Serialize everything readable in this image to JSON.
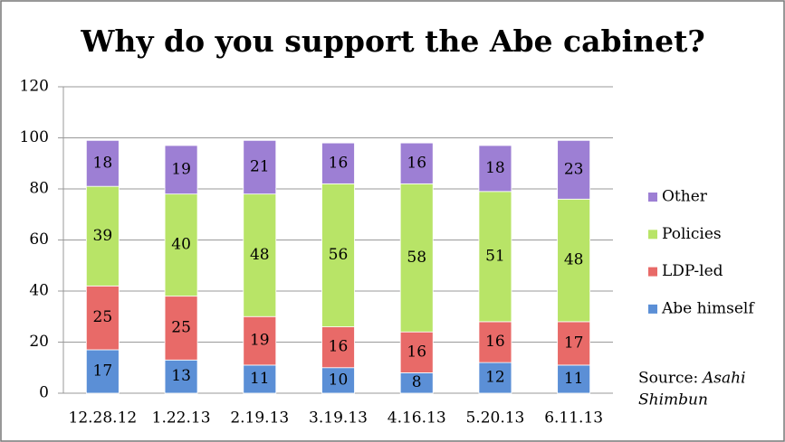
{
  "chart_data": {
    "type": "stacked-bar",
    "title": "Why do you support the Abe cabinet?",
    "categories": [
      "12.28.12",
      "1.22.13",
      "2.19.13",
      "3.19.13",
      "4.16.13",
      "5.20.13",
      "6.11.13"
    ],
    "series": [
      {
        "name": "Abe himself",
        "color": "#5b8fd6",
        "values": [
          17,
          13,
          11,
          10,
          8,
          12,
          11
        ]
      },
      {
        "name": "LDP-led",
        "color": "#e86a68",
        "values": [
          25,
          25,
          19,
          16,
          16,
          16,
          17
        ]
      },
      {
        "name": "Policies",
        "color": "#b8e467",
        "values": [
          39,
          40,
          48,
          56,
          58,
          51,
          48
        ]
      },
      {
        "name": "Other",
        "color": "#9d7fd4",
        "values": [
          18,
          19,
          21,
          16,
          16,
          18,
          23
        ]
      }
    ],
    "ylim": [
      0,
      120
    ],
    "yticks": [
      0,
      20,
      40,
      60,
      80,
      100,
      120
    ],
    "grid": true,
    "legend": "right",
    "source_label": "Source:",
    "source_name": "Asahi Shimbun"
  }
}
